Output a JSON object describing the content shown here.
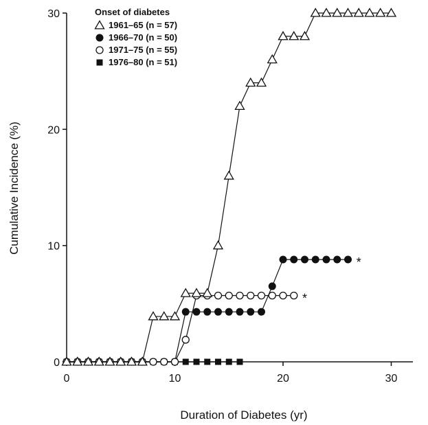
{
  "chart_data": {
    "type": "line",
    "xlabel": "Duration of Diabetes (yr)",
    "ylabel": "Cumulative Incidence (%)",
    "xlim": [
      0,
      32
    ],
    "ylim": [
      0,
      30
    ],
    "x_ticks": [
      0,
      10,
      20,
      30
    ],
    "y_ticks": [
      0,
      10,
      20,
      30
    ],
    "grid": false,
    "legend_title": "Onset of diabetes",
    "legend_position": "top-left",
    "annotations": [
      {
        "text": "*",
        "x": 27,
        "y": 8.8
      },
      {
        "text": "*",
        "x": 22,
        "y": 5.7
      }
    ],
    "series": [
      {
        "name": "1961–65 (n = 57)",
        "marker": "open-triangle",
        "x": [
          0,
          1,
          2,
          3,
          4,
          5,
          6,
          7,
          8,
          9,
          10,
          11,
          12,
          13,
          14,
          15,
          16,
          17,
          18,
          19,
          20,
          21,
          22,
          23,
          24,
          25,
          26,
          27,
          28,
          29,
          30
        ],
        "y": [
          0,
          0,
          0,
          0,
          0,
          0,
          0,
          0,
          3.9,
          3.9,
          3.9,
          5.9,
          5.9,
          5.9,
          10,
          16,
          22,
          24,
          24,
          26,
          28,
          28,
          28,
          30,
          30,
          30,
          30,
          30,
          30,
          30,
          30
        ]
      },
      {
        "name": "1966–70 (n = 50)",
        "marker": "filled-circle",
        "x": [
          0,
          1,
          2,
          3,
          4,
          5,
          6,
          7,
          8,
          9,
          10,
          11,
          12,
          13,
          14,
          15,
          16,
          17,
          18,
          19,
          20,
          21,
          22,
          23,
          24,
          25,
          26
        ],
        "y": [
          0,
          0,
          0,
          0,
          0,
          0,
          0,
          0,
          0,
          0,
          0,
          4.3,
          4.3,
          4.3,
          4.3,
          4.3,
          4.3,
          4.3,
          4.3,
          6.5,
          8.8,
          8.8,
          8.8,
          8.8,
          8.8,
          8.8,
          8.8
        ]
      },
      {
        "name": "1971–75 (n = 55)",
        "marker": "open-circle",
        "x": [
          0,
          1,
          2,
          3,
          4,
          5,
          6,
          7,
          8,
          9,
          10,
          11,
          12,
          13,
          14,
          15,
          16,
          17,
          18,
          19,
          20,
          21
        ],
        "y": [
          0,
          0,
          0,
          0,
          0,
          0,
          0,
          0,
          0,
          0,
          0,
          1.9,
          5.7,
          5.7,
          5.7,
          5.7,
          5.7,
          5.7,
          5.7,
          5.7,
          5.7,
          5.7
        ]
      },
      {
        "name": "1976–80 (n = 51)",
        "marker": "filled-square",
        "x": [
          0,
          1,
          2,
          3,
          4,
          5,
          6,
          7,
          8,
          9,
          10,
          11,
          12,
          13,
          14,
          15,
          16
        ],
        "y": [
          0,
          0,
          0,
          0,
          0,
          0,
          0,
          0,
          0,
          0,
          0,
          0,
          0,
          0,
          0,
          0,
          0
        ]
      }
    ]
  }
}
